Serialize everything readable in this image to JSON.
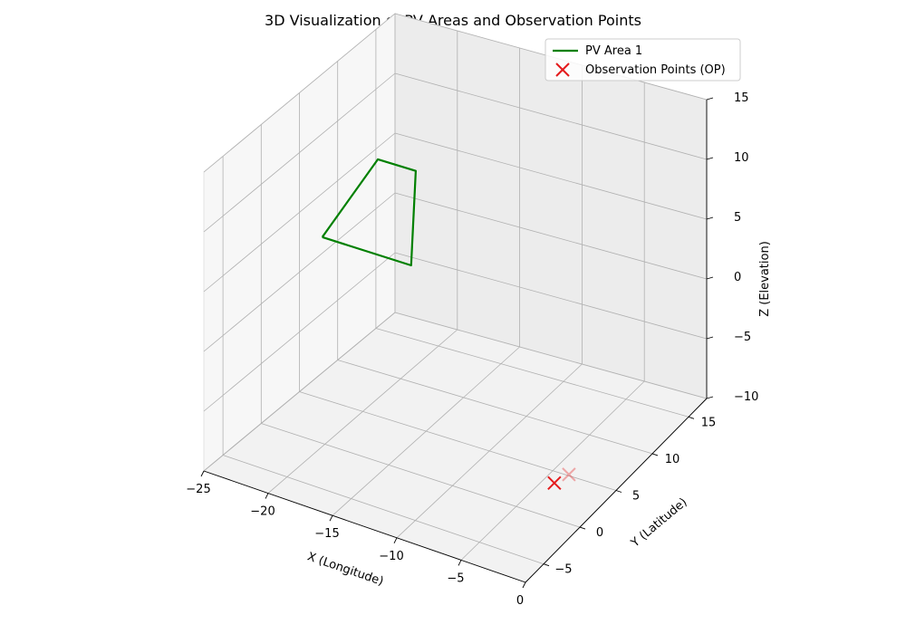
{
  "chart_data": {
    "type": "line3d",
    "title": "3D Visualization of PV Areas and Observation Points",
    "xlabel": "X (Longitude)",
    "ylabel": "Y (Latitude)",
    "zlabel": "Z (Elevation)",
    "xlim": [
      -25,
      0
    ],
    "ylim": [
      -7.5,
      17.5
    ],
    "zlim": [
      -10,
      15
    ],
    "x_ticks": [
      -25,
      -20,
      -15,
      -10,
      -5,
      0
    ],
    "y_ticks": [
      -5,
      0,
      5,
      10,
      15
    ],
    "z_ticks": [
      -10,
      -5,
      0,
      5,
      10,
      15
    ],
    "grid": true,
    "legend_position": "top-right",
    "series": [
      {
        "name": "PV Area 1",
        "kind": "line",
        "color": "#008000",
        "points": [
          {
            "x": -22.0,
            "y": 3.0,
            "z": 5.0
          },
          {
            "x": -20.0,
            "y": 7.0,
            "z": 10.0
          },
          {
            "x": -17.0,
            "y": 7.0,
            "z": 10.0
          },
          {
            "x": -15.0,
            "y": 3.0,
            "z": 5.0
          },
          {
            "x": -22.0,
            "y": 3.0,
            "z": 5.0
          }
        ]
      },
      {
        "name": "Observation Points (OP)",
        "kind": "scatter",
        "marker": "x",
        "color": "#e41a1c",
        "points": [
          {
            "x": -2.0,
            "y": 2.0,
            "z": -7.5
          },
          {
            "x": -2.0,
            "y": 0.0,
            "z": -7.0
          }
        ]
      }
    ]
  }
}
